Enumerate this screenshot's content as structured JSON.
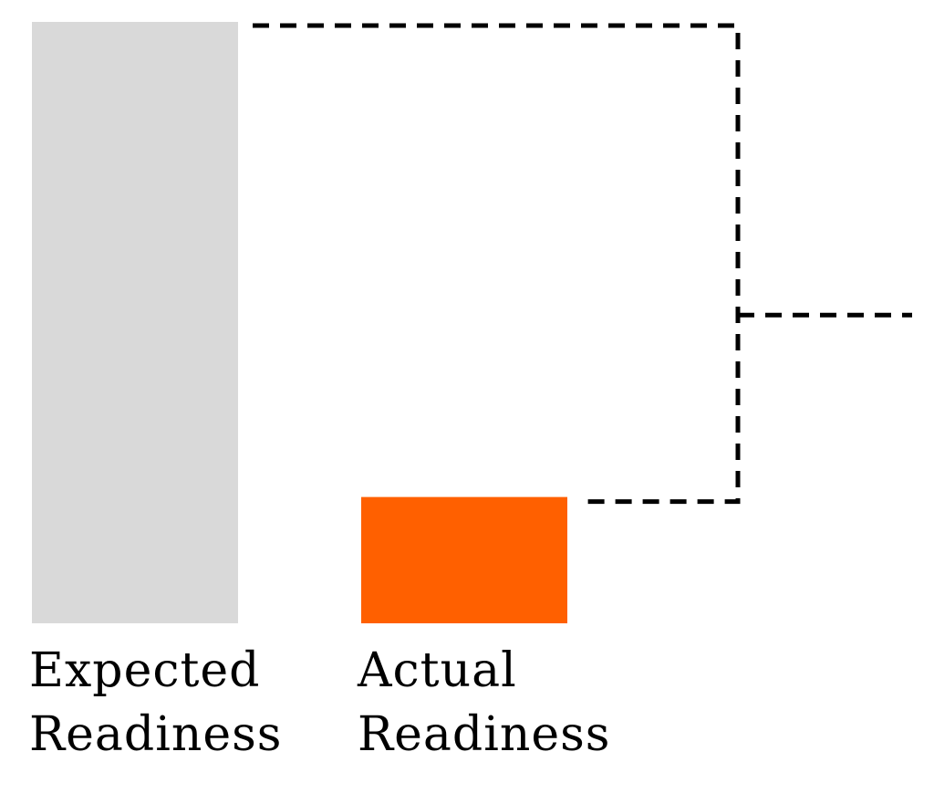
{
  "chart_data": {
    "type": "bar",
    "categories": [
      {
        "line1": "Expected",
        "line2": "Readiness"
      },
      {
        "line1": "Actual",
        "line2": "Readiness"
      }
    ],
    "values": [
      100,
      21
    ],
    "ylim": [
      0,
      100
    ],
    "grid": false,
    "legend": "none",
    "annotation": "dashed bracket connecting the top of both bars, pointing right to indicate the gap",
    "colors": {
      "expected": "#d9d9d9",
      "actual": "#ff6000",
      "connector": "#000000",
      "background": "#ffffff"
    }
  }
}
